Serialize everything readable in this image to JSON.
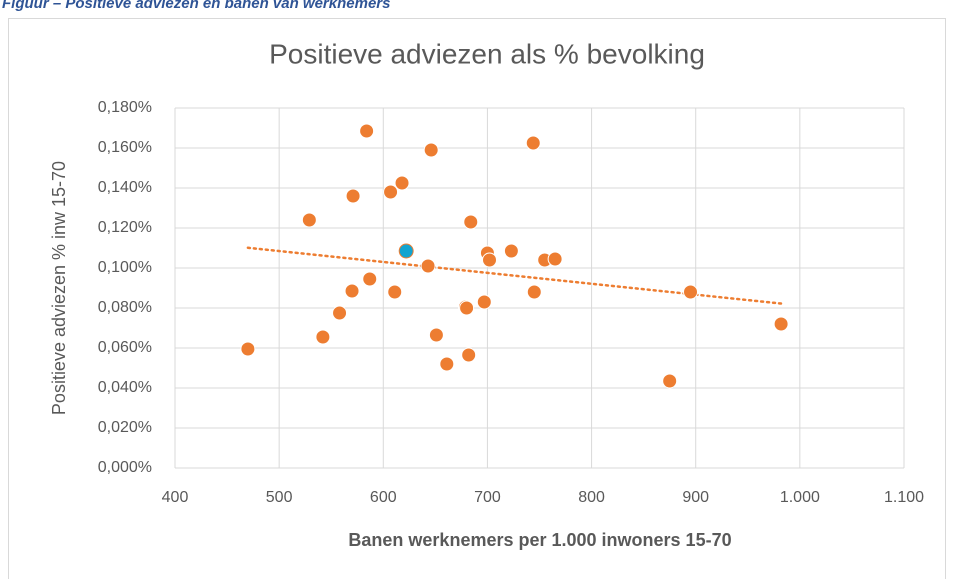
{
  "caption": "Figuur – Positieve adviezen en banen van werknemers",
  "chart_data": {
    "type": "scatter",
    "title": "Positieve adviezen als % bevolking",
    "x_label": "Banen werknemers per 1.000 inwoners 15-70",
    "y_label": "Positieve adviezen % inw 15-70",
    "x": [
      470,
      529,
      571,
      584,
      607,
      618,
      646,
      744,
      684,
      622,
      700,
      702,
      723,
      755,
      765,
      643,
      587,
      570,
      611,
      745,
      895,
      558,
      679,
      680,
      697,
      542,
      651,
      682,
      661,
      875,
      982
    ],
    "values": [
      0.0595,
      0.124,
      0.136,
      0.1685,
      0.138,
      0.1425,
      0.159,
      0.1625,
      0.123,
      0.1085,
      0.1075,
      0.104,
      0.1085,
      0.104,
      0.1045,
      0.101,
      0.0945,
      0.0885,
      0.088,
      0.088,
      0.088,
      0.0775,
      0.0805,
      0.08,
      0.083,
      0.0655,
      0.0665,
      0.0565,
      0.052,
      0.0435,
      0.072
    ],
    "point_colors": [
      "#ed7d31",
      "#ed7d31",
      "#ed7d31",
      "#ed7d31",
      "#ed7d31",
      "#ed7d31",
      "#ed7d31",
      "#ed7d31",
      "#ed7d31",
      "#12a4d0",
      "#ed7d31",
      "#ed7d31",
      "#ed7d31",
      "#ed7d31",
      "#ed7d31",
      "#ed7d31",
      "#ed7d31",
      "#ed7d31",
      "#ed7d31",
      "#ed7d31",
      "#ed7d31",
      "#ed7d31",
      "#ed7d31",
      "#ed7d31",
      "#ed7d31",
      "#ed7d31",
      "#ed7d31",
      "#ed7d31",
      "#ed7d31",
      "#ed7d31",
      "#ed7d31"
    ],
    "color": "#ed7d31",
    "trendline": true,
    "xlim": [
      400,
      1100
    ],
    "xticks": [
      400,
      500,
      600,
      700,
      800,
      900,
      {
        "value": 1000,
        "label": "1.000"
      },
      {
        "value": 1100,
        "label": "1.100"
      }
    ],
    "ylim": [
      0,
      0.18
    ],
    "yticks": [
      {
        "value": 0,
        "label": "0,000%"
      },
      {
        "value": 0.02,
        "label": "0,020%"
      },
      {
        "value": 0.04,
        "label": "0,040%"
      },
      {
        "value": 0.06,
        "label": "0,060%"
      },
      {
        "value": 0.08,
        "label": "0,080%"
      },
      {
        "value": 0.1,
        "label": "0,100%"
      },
      {
        "value": 0.12,
        "label": "0,120%"
      },
      {
        "value": 0.14,
        "label": "0,140%"
      },
      {
        "value": 0.16,
        "label": "0,160%"
      },
      {
        "value": 0.18,
        "label": "0,180%"
      }
    ],
    "grid": true
  }
}
